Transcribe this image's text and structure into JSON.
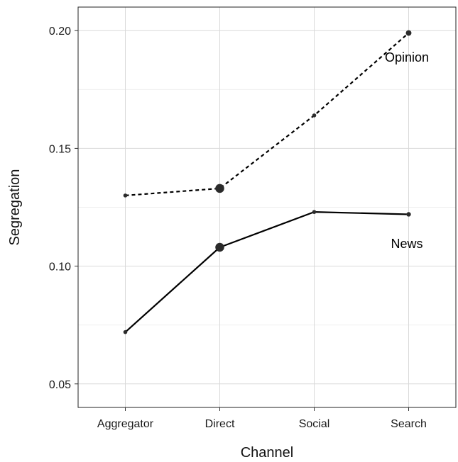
{
  "chart_data": {
    "type": "line",
    "title": "",
    "xlabel": "Channel",
    "ylabel": "Segregation",
    "categories": [
      "Aggregator",
      "Direct",
      "Social",
      "Search"
    ],
    "ylim": [
      0.04,
      0.21
    ],
    "yticks": [
      "0.05",
      "0.10",
      "0.15",
      "0.20"
    ],
    "ytick_values": [
      0.05,
      0.1,
      0.15,
      0.2
    ],
    "grid": true,
    "legend": "none",
    "series": [
      {
        "name": "Opinion",
        "values": [
          0.13,
          0.133,
          0.164,
          0.199
        ],
        "point_weight": [
          1,
          5,
          1,
          2
        ],
        "line_style": "dashed",
        "color": "#000000"
      },
      {
        "name": "News",
        "values": [
          0.072,
          0.108,
          0.123,
          0.122
        ],
        "point_weight": [
          1,
          5,
          1,
          1.3
        ],
        "line_style": "solid",
        "color": "#000000"
      }
    ],
    "colors": {
      "grid": "#d9d9d9",
      "grid_minor": "#efefef",
      "frame": "#222222",
      "point": "#2b2b2b"
    }
  }
}
